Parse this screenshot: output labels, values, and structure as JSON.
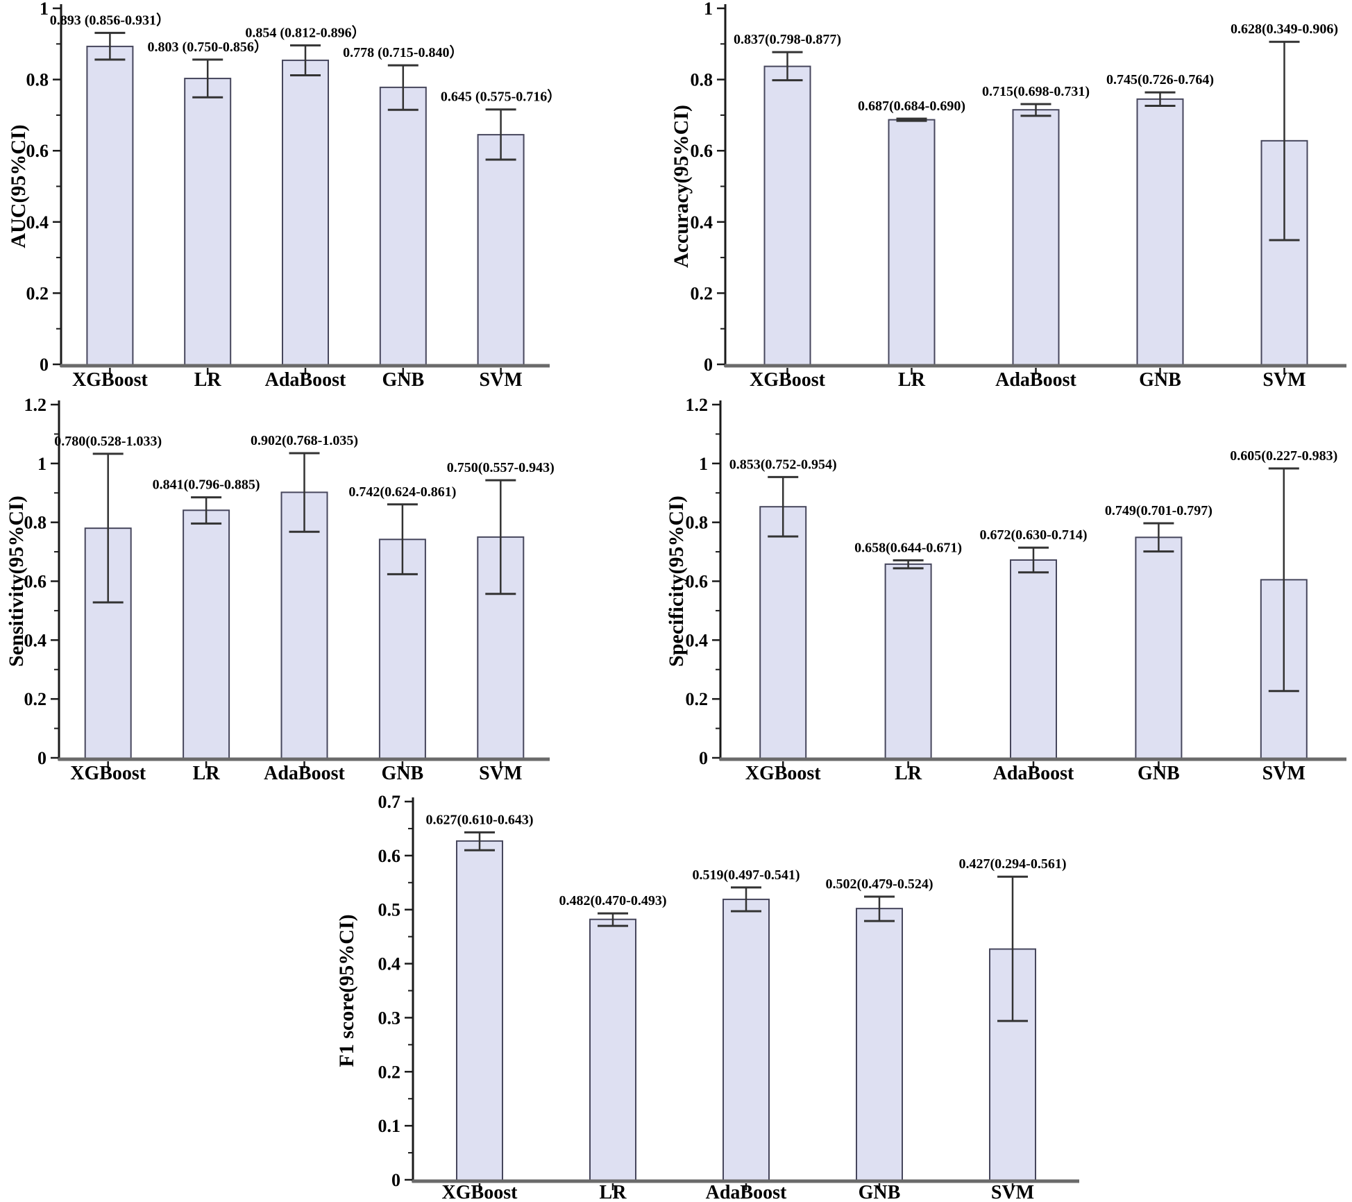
{
  "figure": {
    "background": "#ffffff",
    "bar_fill": "#dee0f2",
    "bar_stroke": "#46465c",
    "error_color": "#333333",
    "yaxis_color": "#1a1a1a",
    "xaxis_color": "#6a6a6a",
    "text_color": "#000000"
  },
  "categories": [
    "XGBoost",
    "LR",
    "AdaBoost",
    "GNB",
    "SVM"
  ],
  "chart_data": [
    {
      "type": "bar",
      "name": "auc",
      "title": "",
      "xlabel": "",
      "ylabel": "AUC(95%CI)",
      "ylim": [
        0,
        1
      ],
      "major_step": 0.2,
      "grid": false,
      "legend": null,
      "yticks": [
        {
          "value": 1,
          "label": "1"
        },
        {
          "value": 0.8,
          "label": "0.8"
        },
        {
          "value": 0.6,
          "label": "0.6"
        },
        {
          "value": 0.4,
          "label": "0.4"
        },
        {
          "value": 0.2,
          "label": "0.2"
        },
        {
          "value": 0,
          "label": "0"
        }
      ],
      "categories": [
        "XGBoost",
        "LR",
        "AdaBoost",
        "GNB",
        "SVM"
      ],
      "values": [
        0.893,
        0.803,
        0.854,
        0.778,
        0.645
      ],
      "ci_low": [
        0.856,
        0.75,
        0.812,
        0.715,
        0.575
      ],
      "ci_high": [
        0.931,
        0.856,
        0.896,
        0.84,
        0.716
      ],
      "point_labels": [
        "0.893 (0.856-0.931）",
        "0.803 (0.750-0.856）",
        "0.854 (0.812-0.896）",
        "0.778 (0.715-0.840）",
        "0.645 (0.575-0.716）"
      ]
    },
    {
      "type": "bar",
      "name": "accuracy",
      "title": "",
      "xlabel": "",
      "ylabel": "Accuracy(95%CI)",
      "ylim": [
        0,
        1
      ],
      "major_step": 0.2,
      "grid": false,
      "legend": null,
      "yticks": [
        {
          "value": 1,
          "label": "1"
        },
        {
          "value": 0.8,
          "label": "0.8"
        },
        {
          "value": 0.6,
          "label": "0.6"
        },
        {
          "value": 0.4,
          "label": "0.4"
        },
        {
          "value": 0.2,
          "label": "0.2"
        },
        {
          "value": 0,
          "label": "0"
        }
      ],
      "categories": [
        "XGBoost",
        "LR",
        "AdaBoost",
        "GNB",
        "SVM"
      ],
      "values": [
        0.837,
        0.687,
        0.715,
        0.745,
        0.628
      ],
      "ci_low": [
        0.798,
        0.684,
        0.698,
        0.726,
        0.349
      ],
      "ci_high": [
        0.877,
        0.69,
        0.731,
        0.764,
        0.906
      ],
      "point_labels": [
        "0.837(0.798-0.877)",
        "0.687(0.684-0.690)",
        "0.715(0.698-0.731)",
        "0.745(0.726-0.764)",
        "0.628(0.349-0.906)"
      ]
    },
    {
      "type": "bar",
      "name": "sensitivity",
      "title": "",
      "xlabel": "",
      "ylabel": "Sensitivity(95%CI)",
      "ylim": [
        0,
        1.2
      ],
      "major_step": 0.2,
      "grid": false,
      "legend": null,
      "yticks": [
        {
          "value": 1.2,
          "label": "1.2"
        },
        {
          "value": 1,
          "label": "1"
        },
        {
          "value": 0.8,
          "label": "0.8"
        },
        {
          "value": 0.6,
          "label": "0.6"
        },
        {
          "value": 0.4,
          "label": "0.4"
        },
        {
          "value": 0.2,
          "label": "0.2"
        },
        {
          "value": 0,
          "label": "0"
        }
      ],
      "categories": [
        "XGBoost",
        "LR",
        "AdaBoost",
        "GNB",
        "SVM"
      ],
      "values": [
        0.78,
        0.841,
        0.902,
        0.742,
        0.75
      ],
      "ci_low": [
        0.528,
        0.796,
        0.768,
        0.624,
        0.557
      ],
      "ci_high": [
        1.033,
        0.885,
        1.035,
        0.861,
        0.943
      ],
      "point_labels": [
        "0.780(0.528-1.033)",
        "0.841(0.796-0.885)",
        "0.902(0.768-1.035)",
        "0.742(0.624-0.861)",
        "0.750(0.557-0.943)"
      ]
    },
    {
      "type": "bar",
      "name": "specificity",
      "title": "",
      "xlabel": "",
      "ylabel": "Specificity(95%CI)",
      "ylim": [
        0,
        1.2
      ],
      "major_step": 0.2,
      "grid": false,
      "legend": null,
      "yticks": [
        {
          "value": 1.2,
          "label": "1.2"
        },
        {
          "value": 1,
          "label": "1"
        },
        {
          "value": 0.8,
          "label": "0.8"
        },
        {
          "value": 0.6,
          "label": "0.6"
        },
        {
          "value": 0.4,
          "label": "0.4"
        },
        {
          "value": 0.2,
          "label": "0.2"
        },
        {
          "value": 0,
          "label": "0"
        }
      ],
      "categories": [
        "XGBoost",
        "LR",
        "AdaBoost",
        "GNB",
        "SVM"
      ],
      "values": [
        0.853,
        0.658,
        0.672,
        0.749,
        0.605
      ],
      "ci_low": [
        0.752,
        0.644,
        0.63,
        0.701,
        0.227
      ],
      "ci_high": [
        0.954,
        0.671,
        0.714,
        0.797,
        0.983
      ],
      "point_labels": [
        "0.853(0.752-0.954)",
        "0.658(0.644-0.671)",
        "0.672(0.630-0.714)",
        "0.749(0.701-0.797)",
        "0.605(0.227-0.983)"
      ]
    },
    {
      "type": "bar",
      "name": "f1_score",
      "title": "",
      "xlabel": "",
      "ylabel": "F1 score(95%CI)",
      "ylim": [
        0,
        0.7
      ],
      "major_step": 0.1,
      "grid": false,
      "legend": null,
      "yticks": [
        {
          "value": 0.7,
          "label": "0.7"
        },
        {
          "value": 0.6,
          "label": "0.6"
        },
        {
          "value": 0.5,
          "label": "0.5"
        },
        {
          "value": 0.4,
          "label": "0.4"
        },
        {
          "value": 0.3,
          "label": "0.3"
        },
        {
          "value": 0.2,
          "label": "0.2"
        },
        {
          "value": 0.1,
          "label": "0.1"
        },
        {
          "value": 0,
          "label": "0"
        }
      ],
      "categories": [
        "XGBoost",
        "LR",
        "AdaBoost",
        "GNB",
        "SVM"
      ],
      "values": [
        0.627,
        0.482,
        0.519,
        0.502,
        0.427
      ],
      "ci_low": [
        0.61,
        0.47,
        0.497,
        0.479,
        0.294
      ],
      "ci_high": [
        0.643,
        0.493,
        0.541,
        0.524,
        0.561
      ],
      "point_labels": [
        "0.627(0.610-0.643)",
        "0.482(0.470-0.493)",
        "0.519(0.497-0.541)",
        "0.502(0.479-0.524)",
        "0.427(0.294-0.561)"
      ]
    }
  ]
}
